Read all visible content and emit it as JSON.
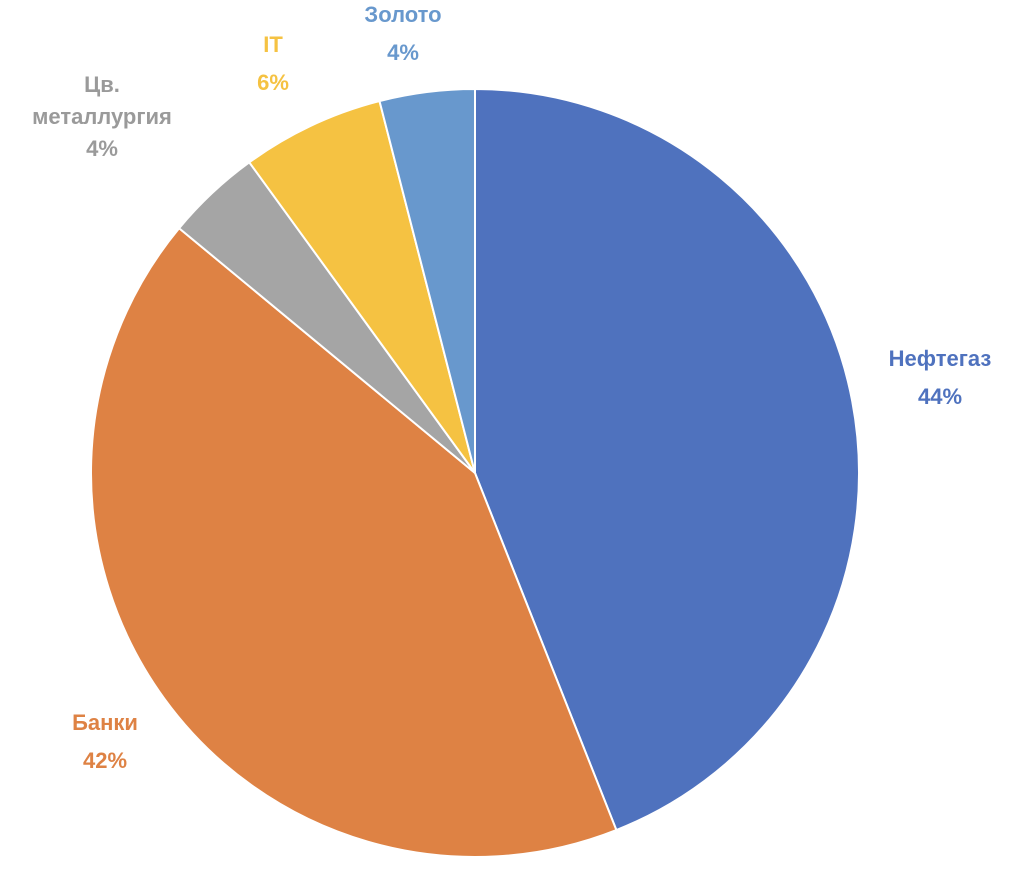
{
  "chart_data": {
    "type": "pie",
    "slices": [
      {
        "label": "Нефтегаз",
        "value": 44,
        "value_label": "44%",
        "color": "#4F72BE"
      },
      {
        "label": "Банки",
        "value": 42,
        "value_label": "42%",
        "color": "#DE8244"
      },
      {
        "label": "Цв. металлургия",
        "label_lines": [
          "Цв.",
          "металлургия"
        ],
        "value": 4,
        "value_label": "4%",
        "color": "#A5A5A5"
      },
      {
        "label": "IT",
        "value": 6,
        "value_label": "6%",
        "color": "#F5C242"
      },
      {
        "label": "Золото",
        "value": 4,
        "value_label": "4%",
        "color": "#6898CD"
      }
    ],
    "start_angle": "12 o'clock",
    "direction": "clockwise",
    "legend": "none",
    "data_labels": "outside, category name and percentage, colored like slice"
  }
}
